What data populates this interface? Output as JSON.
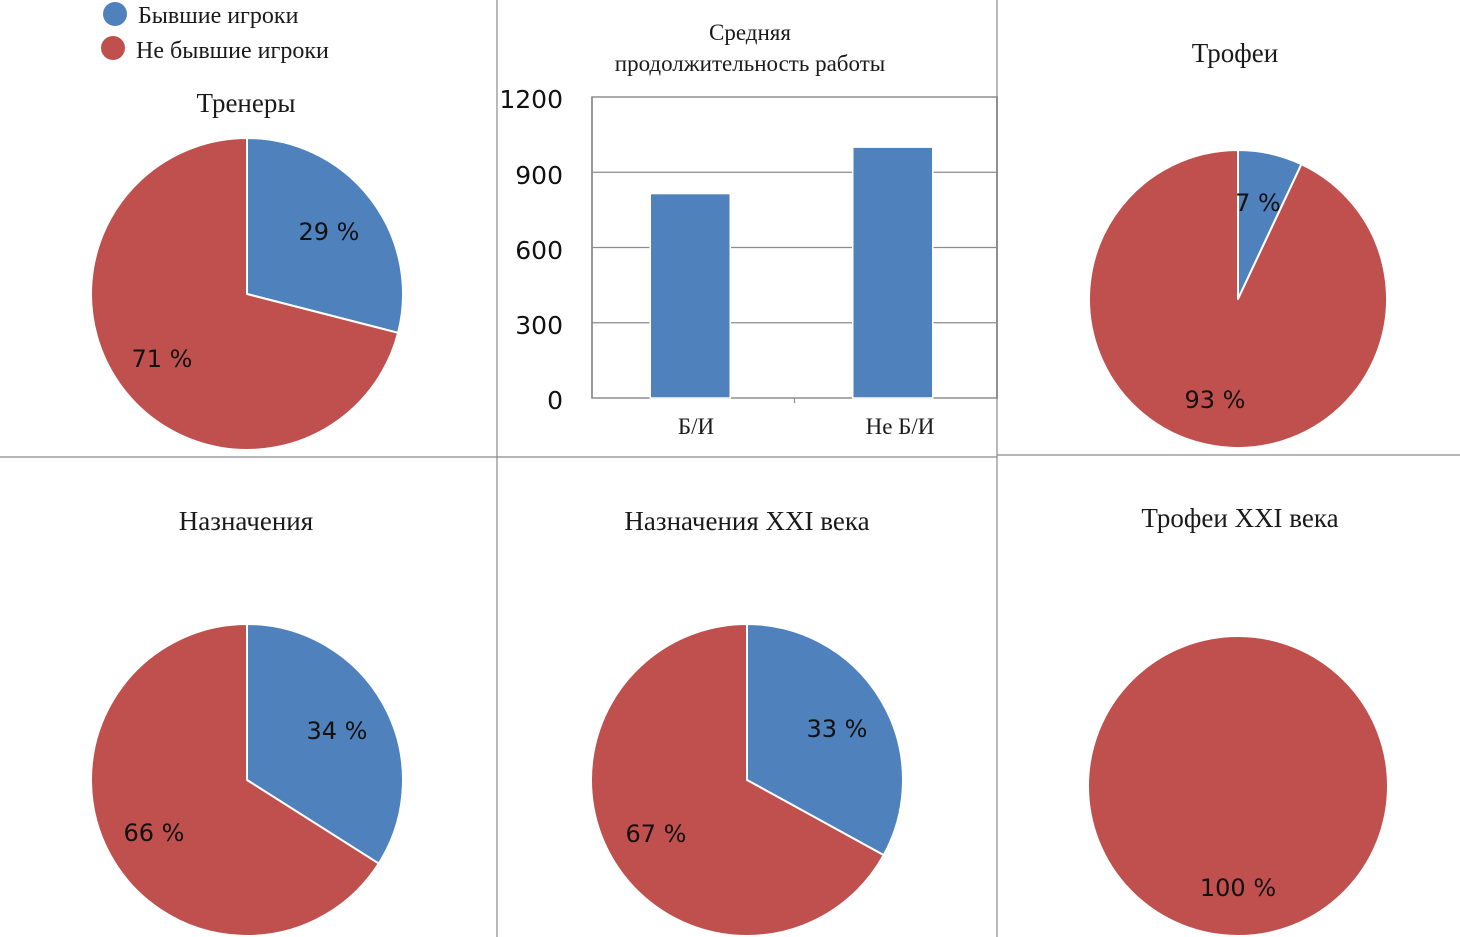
{
  "colors": {
    "former": "#4f81bd",
    "not_former": "#c0504d"
  },
  "legend": {
    "items": [
      {
        "label": "Бывшие игроки",
        "color": "#4f81bd"
      },
      {
        "label": "Не бывшие игроки",
        "color": "#c0504d"
      }
    ]
  },
  "chart_data": [
    {
      "type": "pie",
      "title": "Тренеры",
      "slices": [
        {
          "name": "Бывшие игроки",
          "value": 29,
          "label": "29 %"
        },
        {
          "name": "Не бывшие игроки",
          "value": 71,
          "label": "71 %"
        }
      ]
    },
    {
      "type": "bar",
      "title_lines": [
        "Средняя",
        "продолжительность работы"
      ],
      "categories": [
        "Б/И",
        "Не Б/И"
      ],
      "values": [
        815,
        1000
      ],
      "ylim": [
        0,
        1200
      ],
      "yticks": [
        "0",
        "300",
        "600",
        "900",
        "1200"
      ],
      "grid": true
    },
    {
      "type": "pie",
      "title": "Трофеи",
      "slices": [
        {
          "name": "Бывшие игроки",
          "value": 7,
          "label": "7 %"
        },
        {
          "name": "Не бывшие игроки",
          "value": 93,
          "label": "93 %"
        }
      ]
    },
    {
      "type": "pie",
      "title": "Назначения",
      "slices": [
        {
          "name": "Бывшие игроки",
          "value": 34,
          "label": "34 %"
        },
        {
          "name": "Не бывшие игроки",
          "value": 66,
          "label": "66 %"
        }
      ]
    },
    {
      "type": "pie",
      "title": "Назначения XXI века",
      "slices": [
        {
          "name": "Бывшие игроки",
          "value": 33,
          "label": "33 %"
        },
        {
          "name": "Не бывшие игроки",
          "value": 67,
          "label": "67 %"
        }
      ]
    },
    {
      "type": "pie",
      "title": "Трофеи XXI века",
      "slices": [
        {
          "name": "Бывшие игроки",
          "value": 0,
          "label": ""
        },
        {
          "name": "Не бывшие игроки",
          "value": 100,
          "label": "100 %"
        }
      ]
    }
  ]
}
